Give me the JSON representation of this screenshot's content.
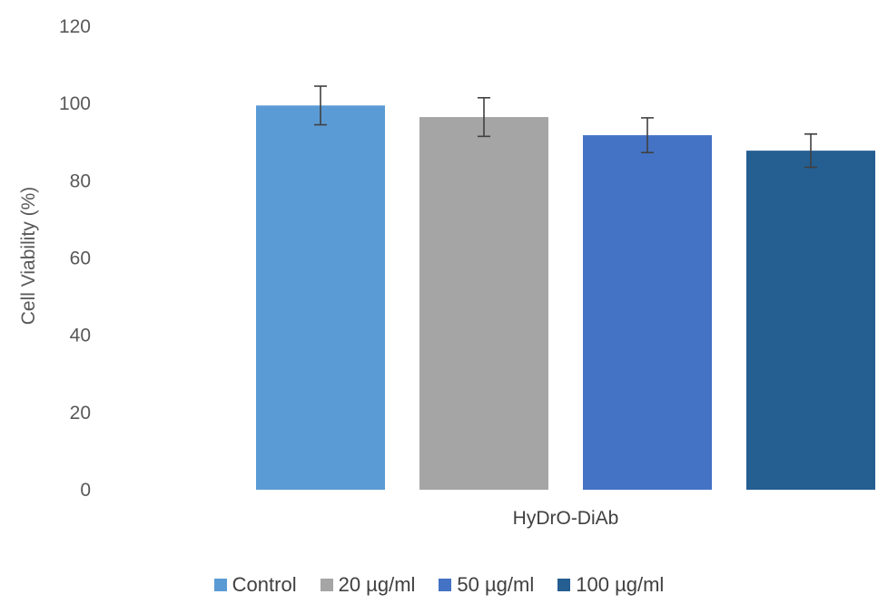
{
  "chart_data": {
    "type": "bar",
    "ylabel": "Cell Viability (%)",
    "xlabel": "",
    "title": "",
    "ylim": [
      0,
      120
    ],
    "yticks": [
      0,
      20,
      40,
      60,
      80,
      100,
      120
    ],
    "categories": [
      "HyDrO-DiAb"
    ],
    "grid": false,
    "legend_position": "bottom",
    "series": [
      {
        "name": "Control",
        "values": [
          99.5
        ],
        "error": [
          5.0
        ],
        "color": "#5B9BD5"
      },
      {
        "name": "20 µg/ml",
        "values": [
          96.5
        ],
        "error": [
          5.0
        ],
        "color": "#A5A5A5"
      },
      {
        "name": "50 µg/ml",
        "values": [
          91.8
        ],
        "error": [
          4.5
        ],
        "color": "#4472C4"
      },
      {
        "name": "100 µg/ml",
        "values": [
          87.8
        ],
        "error": [
          4.3
        ],
        "color": "#255E91"
      }
    ]
  }
}
